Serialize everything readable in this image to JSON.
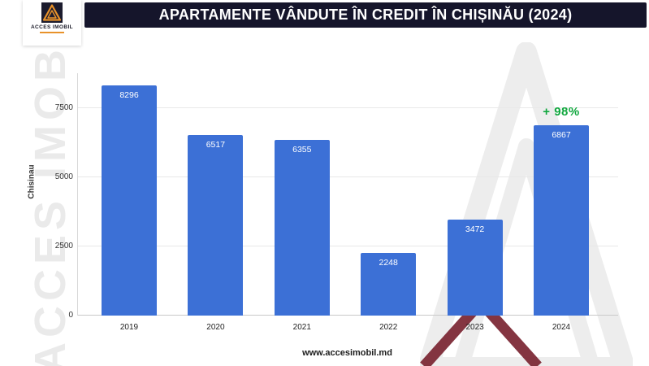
{
  "header": {
    "title": "APARTAMENTE VÂNDUTE ÎN CREDIT ÎN CHIȘINĂU (2024)"
  },
  "logo": {
    "name": "ACCES IMOBIL"
  },
  "watermarks": {
    "left_text": "ACCES IMOBIL"
  },
  "footer": {
    "url": "www.accesimobil.md"
  },
  "colors": {
    "header_bg": "#15152b",
    "accent_orange": "#e8922a",
    "watermark_gray": "#ededed",
    "watermark_red": "#7a2431",
    "bar_blue": "#3c70d6",
    "annotation_green": "#10a73e"
  },
  "chart_data": {
    "type": "bar",
    "title": "APARTAMENTE VÂNDUTE ÎN CREDIT ÎN CHIȘINĂU (2024)",
    "categories": [
      "2019",
      "2020",
      "2021",
      "2022",
      "2023",
      "2024"
    ],
    "values": [
      8296,
      6517,
      6355,
      2248,
      3472,
      6867
    ],
    "xlabel": "",
    "ylabel": "Chisinau",
    "ylim": [
      0,
      8750
    ],
    "yticks": [
      0,
      2500,
      5000,
      7500
    ],
    "grid": true,
    "legend": "none",
    "bar_color": "#3c70d6",
    "annotation": {
      "text": "+ 98%",
      "category": "2024",
      "color": "#10a73e"
    }
  }
}
